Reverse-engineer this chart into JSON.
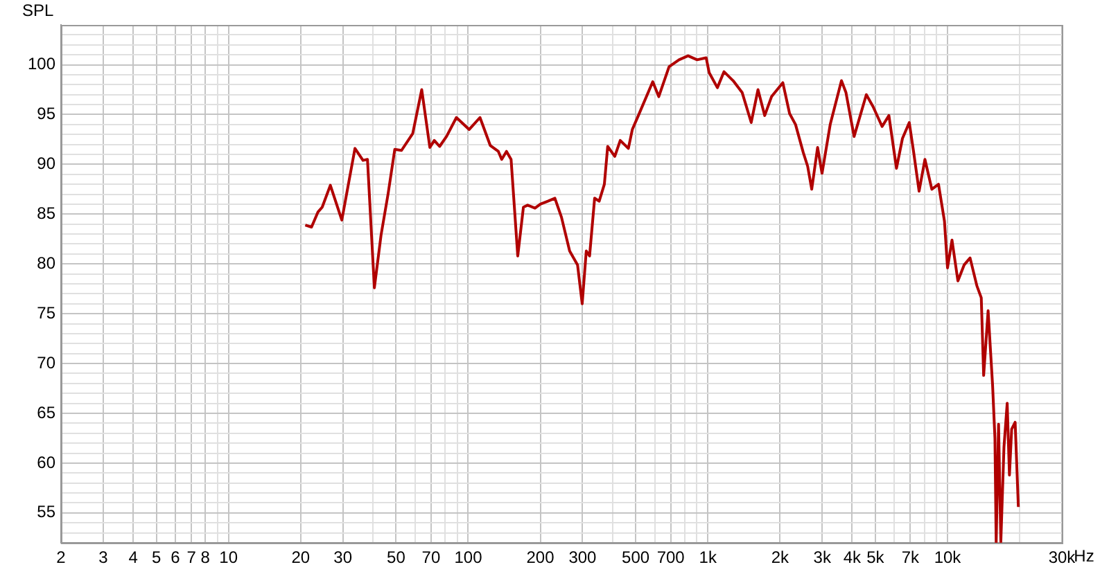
{
  "chart_data": {
    "type": "line",
    "ylabel": "SPL",
    "xlabel": "Hz",
    "xlim": [
      2,
      30000
    ],
    "ylim": [
      52,
      104
    ],
    "log": "x",
    "grid": true,
    "legend": false,
    "marker": "none",
    "line_style": "solid",
    "xticks": [
      2,
      3,
      4,
      5,
      6,
      7,
      8,
      {
        "value": 9,
        "label": null
      },
      10,
      20,
      30,
      {
        "value": 40,
        "label": null
      },
      50,
      {
        "value": 60,
        "label": null
      },
      70,
      {
        "value": 80,
        "label": null
      },
      {
        "value": 90,
        "label": null
      },
      100,
      200,
      300,
      {
        "value": 400,
        "label": null
      },
      500,
      {
        "value": 600,
        "label": null
      },
      700,
      {
        "value": 800,
        "label": null
      },
      {
        "value": 900,
        "label": null
      },
      {
        "value": 1000,
        "label": "1k"
      },
      {
        "value": 2000,
        "label": "2k"
      },
      {
        "value": 3000,
        "label": "3k"
      },
      {
        "value": 4000,
        "label": "4k"
      },
      {
        "value": 5000,
        "label": "5k"
      },
      {
        "value": 6000,
        "label": null
      },
      {
        "value": 7000,
        "label": "7k"
      },
      {
        "value": 8000,
        "label": null
      },
      {
        "value": 9000,
        "label": null
      },
      {
        "value": 10000,
        "label": "10k"
      },
      {
        "value": 20000,
        "label": null
      },
      {
        "value": 30000,
        "label": "30k"
      }
    ],
    "yticks": [
      {
        "value": 53,
        "label": null
      },
      {
        "value": 54,
        "label": null
      },
      55,
      {
        "value": 56,
        "label": null
      },
      {
        "value": 57,
        "label": null
      },
      {
        "value": 58,
        "label": null
      },
      {
        "value": 59,
        "label": null
      },
      60,
      {
        "value": 61,
        "label": null
      },
      {
        "value": 62,
        "label": null
      },
      {
        "value": 63,
        "label": null
      },
      {
        "value": 64,
        "label": null
      },
      65,
      {
        "value": 66,
        "label": null
      },
      {
        "value": 67,
        "label": null
      },
      {
        "value": 68,
        "label": null
      },
      {
        "value": 69,
        "label": null
      },
      70,
      {
        "value": 71,
        "label": null
      },
      {
        "value": 72,
        "label": null
      },
      {
        "value": 73,
        "label": null
      },
      {
        "value": 74,
        "label": null
      },
      75,
      {
        "value": 76,
        "label": null
      },
      {
        "value": 77,
        "label": null
      },
      {
        "value": 78,
        "label": null
      },
      {
        "value": 79,
        "label": null
      },
      80,
      {
        "value": 81,
        "label": null
      },
      {
        "value": 82,
        "label": null
      },
      {
        "value": 83,
        "label": null
      },
      {
        "value": 84,
        "label": null
      },
      85,
      {
        "value": 86,
        "label": null
      },
      {
        "value": 87,
        "label": null
      },
      {
        "value": 88,
        "label": null
      },
      {
        "value": 89,
        "label": null
      },
      90,
      {
        "value": 91,
        "label": null
      },
      {
        "value": 92,
        "label": null
      },
      {
        "value": 93,
        "label": null
      },
      {
        "value": 94,
        "label": null
      },
      95,
      {
        "value": 96,
        "label": null
      },
      {
        "value": 97,
        "label": null
      },
      {
        "value": 98,
        "label": null
      },
      {
        "value": 99,
        "label": null
      },
      100,
      {
        "value": 101,
        "label": null
      },
      {
        "value": 102,
        "label": null
      },
      {
        "value": 103,
        "label": null
      }
    ],
    "series": [
      {
        "color": "#b00000",
        "x": [
          20.9,
          22.2,
          23.6,
          24.6,
          26.6,
          29.7,
          33.7,
          36.4,
          38.0,
          40.6,
          43.3,
          46.3,
          49.4,
          52.7,
          58.7,
          64,
          69.2,
          72.2,
          76,
          81.2,
          89.3,
          100.9,
          112,
          123.6,
          133.6,
          138,
          144.5,
          151,
          161,
          170,
          177,
          190,
          200,
          215,
          230,
          245,
          265,
          286,
          299,
          311,
          321,
          337,
          352,
          370,
          382,
          409,
          431,
          466,
          484,
          513,
          589,
          624,
          689,
          758,
          827,
          902,
          984,
          1013,
          1096,
          1168,
          1275,
          1391,
          1517,
          1619,
          1727,
          1844,
          2055,
          2193,
          2322,
          2500,
          2609,
          2713,
          2870,
          2995,
          3240,
          3610,
          3770,
          4076,
          4584,
          4890,
          5334,
          5694,
          6124,
          6486,
          6925,
          7225,
          7610,
          8050,
          8600,
          9170,
          9710,
          10000,
          10440,
          11050,
          11730,
          12420,
          13260,
          13830,
          14150,
          14770,
          15420,
          15770,
          15960,
          16330,
          16690,
          17200,
          17740,
          18130,
          18520,
          19150,
          19750
        ],
        "values": [
          83.9,
          83.7,
          85.2,
          85.7,
          87.9,
          84.4,
          91.6,
          90.4,
          90.5,
          77.6,
          82.9,
          87.0,
          91.5,
          91.4,
          93.1,
          97.5,
          91.7,
          92.4,
          91.8,
          92.8,
          94.7,
          93.5,
          94.7,
          91.9,
          91.3,
          90.5,
          91.3,
          90.5,
          80.8,
          85.7,
          85.9,
          85.6,
          86.0,
          86.3,
          86.6,
          84.7,
          81.3,
          79.9,
          76.0,
          81.3,
          80.8,
          86.6,
          86.3,
          88.0,
          91.8,
          90.8,
          92.4,
          91.6,
          93.5,
          94.9,
          98.3,
          96.8,
          99.8,
          100.5,
          100.9,
          100.5,
          100.7,
          99.2,
          97.7,
          99.3,
          98.4,
          97.2,
          94.2,
          97.5,
          94.9,
          96.8,
          98.2,
          95.1,
          94.0,
          91.2,
          89.8,
          87.5,
          91.7,
          89.1,
          94.0,
          98.4,
          97.2,
          92.8,
          97.0,
          95.8,
          93.8,
          94.9,
          89.6,
          92.6,
          94.2,
          91.2,
          87.3,
          90.5,
          87.5,
          88.0,
          84.3,
          79.6,
          82.4,
          78.3,
          79.9,
          80.6,
          77.8,
          76.6,
          68.8,
          75.3,
          67.8,
          62.5,
          52,
          63.9,
          52.1,
          61.6,
          66.0,
          58.8,
          63.4,
          64.1,
          55.6
        ]
      }
    ]
  }
}
